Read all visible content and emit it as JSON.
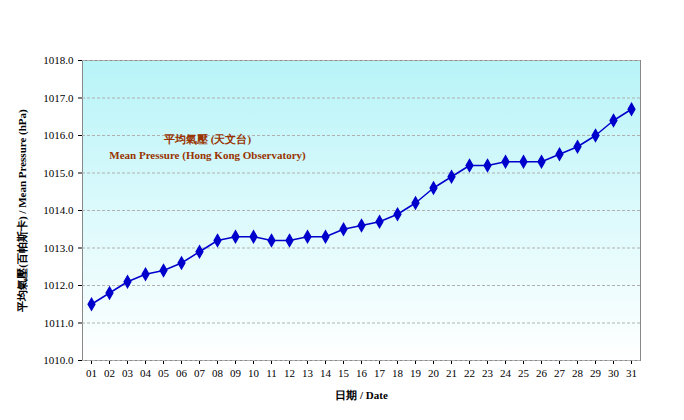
{
  "chart_data": {
    "type": "line",
    "x_label": "日期 / Date",
    "y_label": "平均氣壓(百帕斯卡) / Mean Pressure (hPa)",
    "annotations": [
      "平均氣壓 (天文台)",
      "Mean Pressure (Hong Kong Observatory)"
    ],
    "categories": [
      "01",
      "02",
      "03",
      "04",
      "05",
      "06",
      "07",
      "08",
      "09",
      "10",
      "11",
      "12",
      "13",
      "14",
      "15",
      "16",
      "17",
      "18",
      "19",
      "20",
      "21",
      "22",
      "23",
      "24",
      "25",
      "26",
      "27",
      "28",
      "29",
      "30",
      "31"
    ],
    "values": [
      1011.5,
      1011.8,
      1012.1,
      1012.3,
      1012.4,
      1012.6,
      1012.9,
      1013.2,
      1013.3,
      1013.3,
      1013.2,
      1013.2,
      1013.3,
      1013.3,
      1013.5,
      1013.6,
      1013.7,
      1013.9,
      1014.2,
      1014.6,
      1014.9,
      1015.2,
      1015.2,
      1015.3,
      1015.3,
      1015.3,
      1015.5,
      1015.7,
      1016.0,
      1016.4,
      1016.7
    ],
    "color": "#0000cc",
    "marker": "diamond",
    "ylim": [
      1010,
      1018
    ],
    "yticks": [
      {
        "value": 1010,
        "label": "1010.0"
      },
      {
        "value": 1011,
        "label": "1011.0"
      },
      {
        "value": 1012,
        "label": "1012.0"
      },
      {
        "value": 1013,
        "label": "1013.0"
      },
      {
        "value": 1014,
        "label": "1014.0"
      },
      {
        "value": 1015,
        "label": "1015.0"
      },
      {
        "value": 1016,
        "label": "1016.0"
      },
      {
        "value": 1017,
        "label": "1017.0"
      },
      {
        "value": 1018,
        "label": "1018.0"
      }
    ],
    "grid": true
  }
}
